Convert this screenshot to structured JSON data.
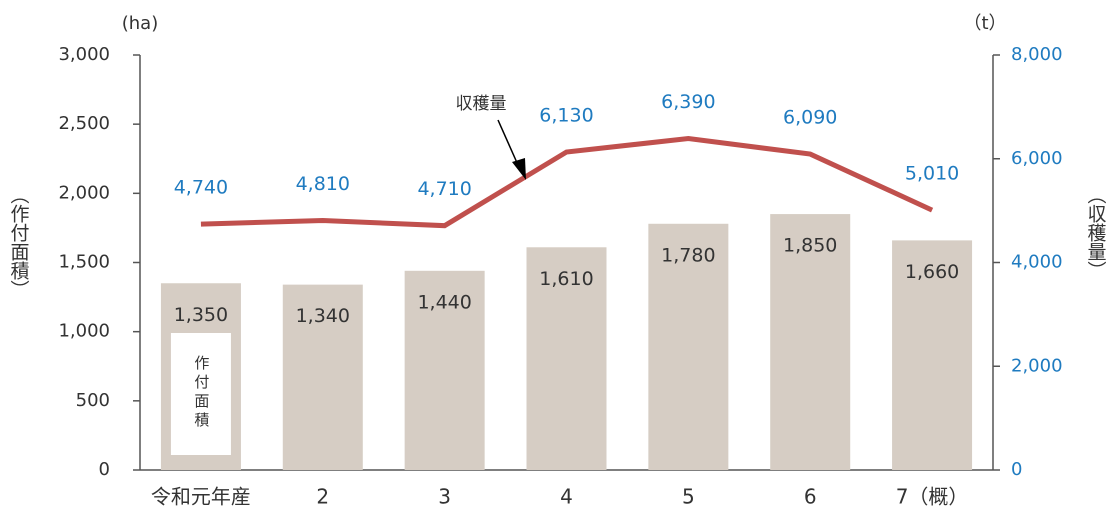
{
  "chart_data": {
    "type": "bar_line",
    "left_unit": "(ha)",
    "right_unit": "（t）",
    "y_label": "（作付面積）",
    "y2_label": "（収穫量）",
    "categories": [
      "令和元年産",
      "2",
      "3",
      "4",
      "5",
      "6",
      "7（概）"
    ],
    "series": [
      {
        "name": "作付面積",
        "type": "bar",
        "color": "#d6cdc4",
        "values": [
          1350,
          1340,
          1440,
          1610,
          1780,
          1850,
          1660
        ],
        "value_labels": [
          "1,350",
          "1,340",
          "1,440",
          "1,610",
          "1,780",
          "1,850",
          "1,660"
        ]
      },
      {
        "name": "収穫量",
        "type": "line",
        "axis": "y2",
        "color": "#c0504d",
        "values": [
          4740,
          4810,
          4710,
          6130,
          6390,
          6090,
          5010
        ],
        "value_labels": [
          "4,740",
          "4,810",
          "4,710",
          "6,130",
          "6,390",
          "6,090",
          "5,010"
        ]
      }
    ],
    "ylim": [
      0,
      3000
    ],
    "yticks": [
      0,
      500,
      {
        "value": 1000,
        "label": "1,000"
      },
      {
        "value": 1500,
        "label": "1,500"
      },
      {
        "value": 2000,
        "label": "2,000"
      },
      {
        "value": 2500,
        "label": "2,500"
      },
      {
        "value": 3000,
        "label": "3,000"
      }
    ],
    "y2lim": [
      0,
      8000
    ],
    "y2ticks": [
      0,
      {
        "value": 2000,
        "label": "2,000"
      },
      {
        "value": 4000,
        "label": "4,000"
      },
      {
        "value": 6000,
        "label": "6,000"
      },
      {
        "value": 8000,
        "label": "8,000"
      }
    ]
  }
}
